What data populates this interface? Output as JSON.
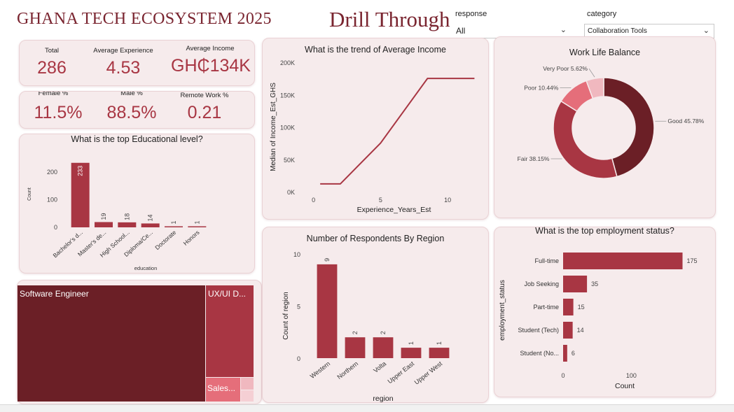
{
  "header": {
    "title": "GHANA TECH ECOSYSTEM 2025",
    "drill_button": "Drill Through"
  },
  "slicers": {
    "response": {
      "label": "response",
      "value": "All"
    },
    "category": {
      "label": "category",
      "value": "Collaboration Tools"
    }
  },
  "kpis_row1": [
    {
      "label": "Total",
      "value": "286"
    },
    {
      "label": "Average Experience",
      "value": "4.53"
    },
    {
      "label": "Average Income",
      "value": "GH₵134K"
    }
  ],
  "kpis_row2": [
    {
      "label": "Female %",
      "value": "11.5%"
    },
    {
      "label": "Male %",
      "value": "88.5%"
    },
    {
      "label": "Remote Work %",
      "value": "0.21"
    }
  ],
  "colors": {
    "accent": "#a83643",
    "dark": "#6b1f26",
    "light": "#e56e7a",
    "pale": "#f0b8bf",
    "bg": "#f6ebec"
  },
  "treemap": {
    "items": [
      {
        "label": "Software Engineer",
        "color": "#6b1f26"
      },
      {
        "label": "UX/UI D...",
        "color": "#a83643"
      },
      {
        "label": "Sales...",
        "color": "#e56e7a"
      },
      {
        "label": "",
        "color": "#f0b8bf"
      },
      {
        "label": "",
        "color": "#f5cfd4"
      }
    ]
  },
  "chart_data": [
    {
      "id": "education",
      "type": "bar",
      "title": "What is the top Educational level?",
      "xlabel": "education",
      "ylabel": "Count",
      "categories": [
        "Bachelor's d...",
        "Master's de...",
        "High School...",
        "Diploma/Ce...",
        "Doctorate",
        "Honors"
      ],
      "values": [
        233,
        19,
        18,
        14,
        1,
        1
      ],
      "ylim": [
        0,
        240
      ],
      "yticks": [
        0,
        100,
        200
      ]
    },
    {
      "id": "income_trend",
      "type": "line",
      "title": "What is the trend of Average Income",
      "xlabel": "Experience_Years_Est",
      "ylabel": "Median of Income_Est_GHS",
      "x": [
        0.5,
        2,
        5,
        8.5,
        12
      ],
      "y": [
        12000,
        12000,
        75000,
        175000,
        175000
      ],
      "xlim": [
        -0.5,
        12.5
      ],
      "ylim": [
        0,
        200000
      ],
      "xticks": [
        0,
        5,
        10
      ],
      "yticks": [
        0,
        50000,
        100000,
        150000,
        200000
      ],
      "ytick_labels": [
        "0K",
        "50K",
        "100K",
        "150K",
        "200K"
      ]
    },
    {
      "id": "worklife",
      "type": "pie",
      "title": "Work Life Balance",
      "categories": [
        "Good",
        "Fair",
        "Poor",
        "Very Poor"
      ],
      "values": [
        45.78,
        38.15,
        10.44,
        5.62
      ],
      "labels": [
        "Good 45.78%",
        "Fair 38.15%",
        "Poor 10.44%",
        "Very Poor 5.62%"
      ]
    },
    {
      "id": "region",
      "type": "bar",
      "title": "Number of Respondents By Region",
      "xlabel": "region",
      "ylabel": "Count of region",
      "categories": [
        "Western",
        "Northern",
        "Volta",
        "Upper East",
        "Upper West"
      ],
      "values": [
        9,
        2,
        2,
        1,
        1
      ],
      "ylim": [
        0,
        10
      ],
      "yticks": [
        0,
        5,
        10
      ]
    },
    {
      "id": "employment",
      "type": "bar",
      "orientation": "horizontal",
      "title": "What is the top employment status?",
      "xlabel": "Count",
      "ylabel": "employment_status",
      "categories": [
        "Full-time",
        "Job Seeking",
        "Part-time",
        "Student (Tech)",
        "Student (No..."
      ],
      "values": [
        175,
        35,
        15,
        14,
        6
      ],
      "xlim": [
        0,
        195
      ],
      "xticks": [
        0,
        100
      ]
    }
  ]
}
